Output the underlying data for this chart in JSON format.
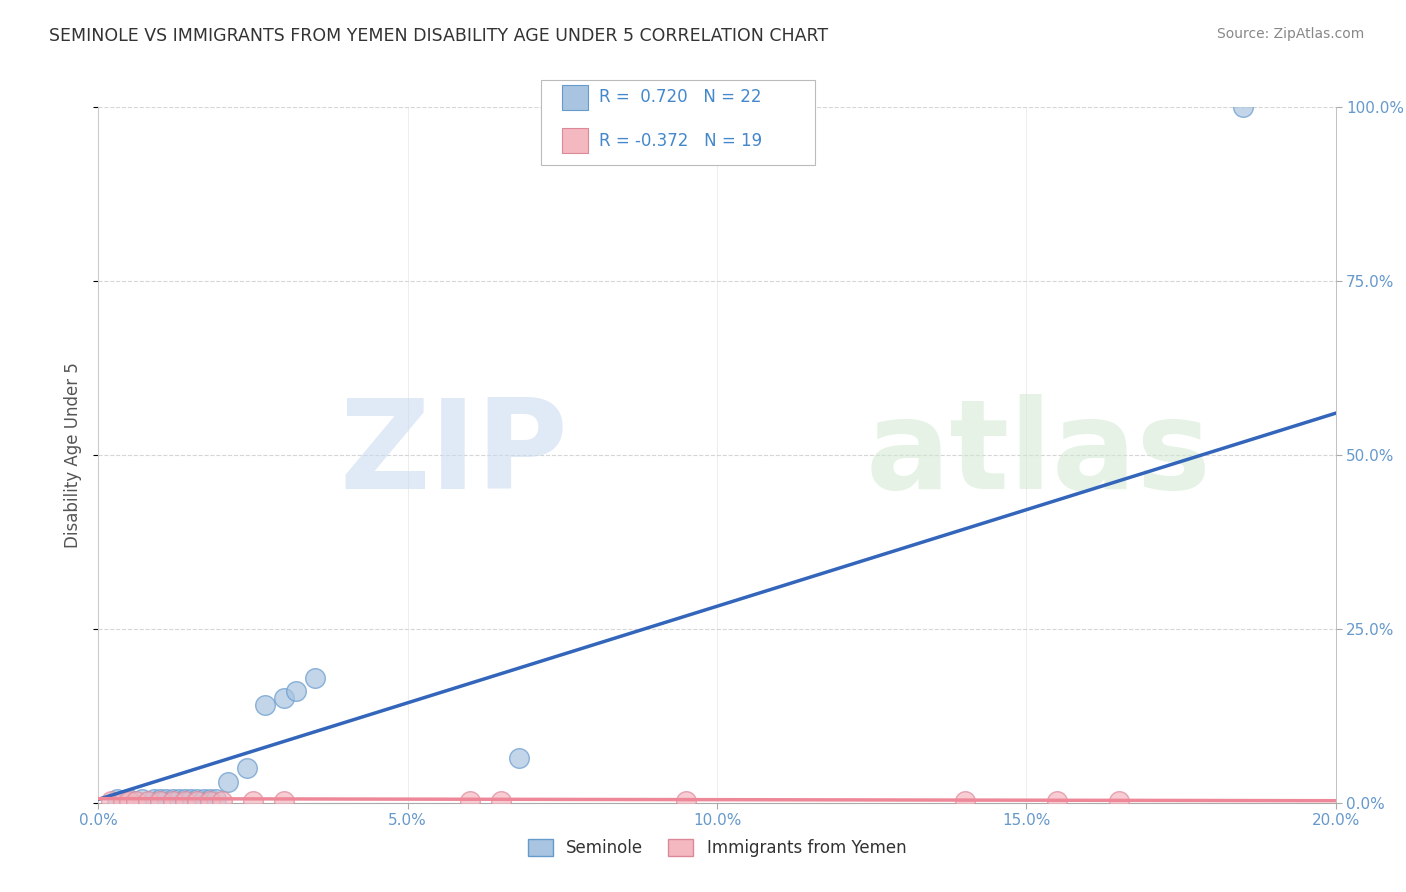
{
  "title": "SEMINOLE VS IMMIGRANTS FROM YEMEN DISABILITY AGE UNDER 5 CORRELATION CHART",
  "source": "Source: ZipAtlas.com",
  "ylabel": "Disability Age Under 5",
  "watermark_zip": "ZIP",
  "watermark_atlas": "atlas",
  "xlim": [
    0.0,
    0.2
  ],
  "ylim": [
    0.0,
    1.0
  ],
  "xticks": [
    0.0,
    0.05,
    0.1,
    0.15,
    0.2
  ],
  "xtick_labels": [
    "0.0%",
    "5.0%",
    "10.0%",
    "15.0%",
    "20.0%"
  ],
  "ytick_labels": [
    "0.0%",
    "25.0%",
    "50.0%",
    "75.0%",
    "100.0%"
  ],
  "series1_color": "#A8C4E0",
  "series1_edge": "#6699CC",
  "series2_color": "#F4B8C1",
  "series2_edge": "#DD8899",
  "series1_label": "Seminole",
  "series2_label": "Immigrants from Yemen",
  "R1": 0.72,
  "N1": 22,
  "R2": -0.372,
  "N2": 19,
  "series1_x": [
    0.003,
    0.005,
    0.007,
    0.009,
    0.01,
    0.011,
    0.012,
    0.013,
    0.014,
    0.015,
    0.016,
    0.017,
    0.018,
    0.019,
    0.021,
    0.024,
    0.027,
    0.03,
    0.032,
    0.035,
    0.068,
    0.185
  ],
  "series1_y": [
    0.005,
    0.005,
    0.005,
    0.005,
    0.005,
    0.005,
    0.005,
    0.005,
    0.005,
    0.005,
    0.005,
    0.005,
    0.005,
    0.005,
    0.03,
    0.05,
    0.14,
    0.15,
    0.16,
    0.18,
    0.065,
    1.0
  ],
  "series2_x": [
    0.002,
    0.004,
    0.005,
    0.006,
    0.008,
    0.01,
    0.012,
    0.014,
    0.016,
    0.018,
    0.02,
    0.025,
    0.03,
    0.06,
    0.065,
    0.095,
    0.14,
    0.155,
    0.165
  ],
  "series2_y": [
    0.003,
    0.003,
    0.003,
    0.003,
    0.003,
    0.003,
    0.003,
    0.003,
    0.003,
    0.003,
    0.003,
    0.003,
    0.003,
    0.003,
    0.003,
    0.003,
    0.003,
    0.003,
    0.003
  ],
  "line1_color": "#3366BB",
  "line1_x0": 0.0,
  "line1_y0": 0.005,
  "line1_x1": 0.2,
  "line1_y1": 0.56,
  "line2_color": "#EE8899",
  "line2_x0": 0.0,
  "line2_y0": 0.006,
  "line2_x1": 0.2,
  "line2_y1": 0.003,
  "background_color": "#FFFFFF",
  "grid_color": "#CCCCCC",
  "title_color": "#333333",
  "axis_label_color": "#555555",
  "tick_label_color": "#6699CC",
  "legend_R_color": "#4488CC",
  "legend_N_color": "#333333"
}
